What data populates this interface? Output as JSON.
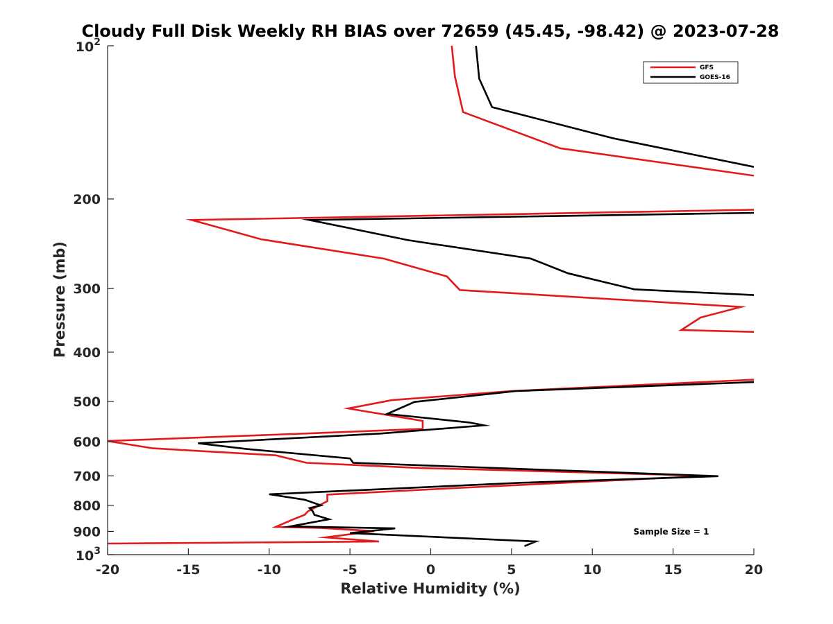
{
  "colors": {
    "gfs": "#e31a1c",
    "goes16": "#000000",
    "axis": "#262626"
  },
  "chart_data": {
    "type": "line",
    "title": "Cloudy Full Disk Weekly RH BIAS over 72659 (45.45, -98.42) @ 2023-07-28",
    "xlabel": "Relative Humidity (%)",
    "ylabel": "Pressure (mb)",
    "xlim": [
      -20,
      20
    ],
    "ylim": [
      100,
      1000
    ],
    "y_scale": "log",
    "y_reversed": true,
    "x_ticks": [
      -20,
      -15,
      -10,
      -5,
      0,
      5,
      10,
      15,
      20
    ],
    "x_tick_labels": [
      "-20",
      "-15",
      "-10",
      "-5",
      "0",
      "5",
      "10",
      "15",
      "20"
    ],
    "y_ticks": [
      200,
      300,
      400,
      500,
      600,
      700,
      800,
      900
    ],
    "y_tick_labels": [
      "200",
      "300",
      "400",
      "500",
      "600",
      "700",
      "800",
      "900"
    ],
    "y_ends": [
      {
        "base": "10",
        "exp": "2",
        "value": 100
      },
      {
        "base": "10",
        "exp": "3",
        "value": 1000
      }
    ],
    "grid": false,
    "legend_position": "top-right",
    "annotation": "Sample Size = 1",
    "series": [
      {
        "name": "GFS",
        "color": "#e31a1c",
        "points": [
          [
            1.3,
            100
          ],
          [
            1.5,
            115
          ],
          [
            2.0,
            135
          ],
          [
            8.0,
            159
          ],
          [
            20.0,
            180
          ],
          [
            null,
            null
          ],
          [
            20.0,
            210
          ],
          [
            -14.8,
            220
          ],
          [
            -10.5,
            240
          ],
          [
            -2.9,
            262
          ],
          [
            1.0,
            284
          ],
          [
            1.8,
            302
          ],
          [
            19.2,
            326
          ],
          [
            16.7,
            342
          ],
          [
            15.5,
            362
          ],
          [
            20.0,
            365
          ],
          [
            null,
            null
          ],
          [
            20.0,
            453
          ],
          [
            5.0,
            477
          ],
          [
            -2.4,
            497
          ],
          [
            -5.1,
            516
          ],
          [
            -0.5,
            546
          ],
          [
            -0.5,
            566
          ],
          [
            -7.8,
            578
          ],
          [
            -20.0,
            598
          ],
          [
            -17.2,
            618
          ],
          [
            -9.6,
            638
          ],
          [
            -7.7,
            660
          ],
          [
            -0.5,
            676
          ],
          [
            2.8,
            680
          ],
          [
            17.2,
            700
          ],
          [
            1.5,
            740
          ],
          [
            -6.4,
            762
          ],
          [
            -6.4,
            785
          ],
          [
            -7.6,
            822
          ],
          [
            -7.8,
            835
          ],
          [
            -8.5,
            852
          ],
          [
            -9.6,
            882
          ],
          [
            -6.8,
            886
          ],
          [
            -3.5,
            899
          ],
          [
            -6.5,
            925
          ],
          [
            -3.2,
            942
          ],
          [
            -20.0,
            951
          ]
        ]
      },
      {
        "name": "GOES-16",
        "color": "#000000",
        "points": [
          [
            2.8,
            100
          ],
          [
            3.0,
            116
          ],
          [
            3.8,
            132
          ],
          [
            11.3,
            152
          ],
          [
            20.0,
            173
          ],
          [
            null,
            null
          ],
          [
            20.0,
            213
          ],
          [
            -7.5,
            220
          ],
          [
            -1.4,
            241
          ],
          [
            6.2,
            262
          ],
          [
            8.5,
            280
          ],
          [
            12.6,
            301
          ],
          [
            20.0,
            309
          ],
          [
            null,
            null
          ],
          [
            20.0,
            458
          ],
          [
            5.3,
            477
          ],
          [
            -1.0,
            501
          ],
          [
            -2.7,
            529
          ],
          [
            2.4,
            550
          ],
          [
            3.3,
            557
          ],
          [
            -3.1,
            578
          ],
          [
            -14.4,
            604
          ],
          [
            -11.4,
            620
          ],
          [
            -5.0,
            647
          ],
          [
            -4.8,
            660
          ],
          [
            17.8,
            701
          ],
          [
            5.7,
            722
          ],
          [
            -10.0,
            761
          ],
          [
            -7.8,
            780
          ],
          [
            -6.8,
            800
          ],
          [
            -7.5,
            810
          ],
          [
            -7.3,
            822
          ],
          [
            -7.2,
            835
          ],
          [
            -6.3,
            852
          ],
          [
            -8.7,
            880
          ],
          [
            -2.2,
            888
          ],
          [
            -5.0,
            907
          ],
          [
            6.5,
            942
          ],
          [
            5.8,
            962
          ]
        ]
      }
    ]
  }
}
